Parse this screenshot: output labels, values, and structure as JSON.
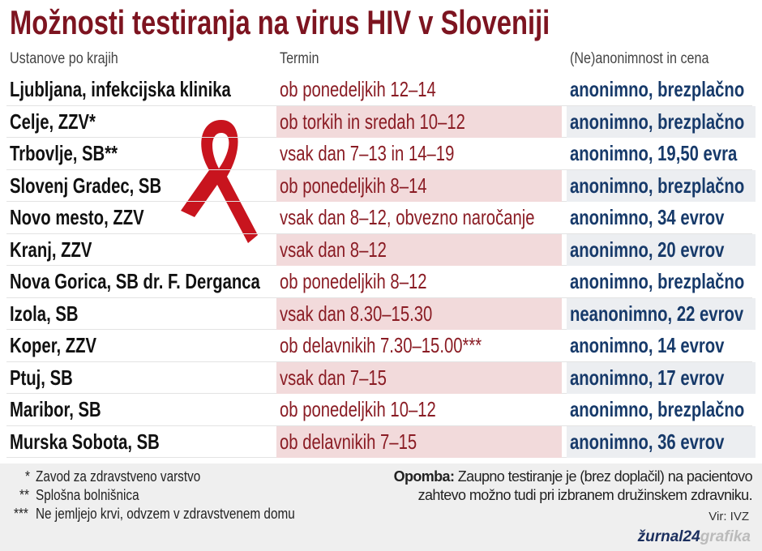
{
  "title": "Možnosti testiranja na virus HIV v Sloveniji",
  "table": {
    "header": [
      "Ustanove po krajih",
      "Termin",
      "(Ne)anonimnost in cena"
    ],
    "rows": [
      [
        "Ljubljana, infekcijska klinika",
        "ob ponedeljkih 12–14",
        "anonimno, brezplačno"
      ],
      [
        "Celje, ZZV*",
        "ob torkih in sredah 10–12",
        "anonimno, brezplačno"
      ],
      [
        "Trbovlje, SB**",
        "vsak dan 7–13 in 14–19",
        "anonimno, 19,50 evra"
      ],
      [
        "Slovenj Gradec, SB",
        "ob ponedeljkih 8–14",
        "anonimno, brezplačno"
      ],
      [
        "Novo mesto, ZZV",
        "vsak dan 8–12, obvezno naročanje",
        "anonimno, 34 evrov"
      ],
      [
        "Kranj, ZZV",
        "vsak dan 8–12",
        "anonimno, 20 evrov"
      ],
      [
        "Nova Gorica, SB dr. F. Derganca",
        "ob ponedeljkih 8–12",
        "anonimno, brezplačno"
      ],
      [
        "Izola, SB",
        "vsak dan 8.30–15.30",
        "neanonimno, 22 evrov"
      ],
      [
        "Koper, ZZV",
        "ob delavnikih 7.30–15.00***",
        "anonimno, 14 evrov"
      ],
      [
        "Ptuj, SB",
        "vsak dan 7–15",
        "anonimno, 17 evrov"
      ],
      [
        "Maribor, SB",
        "ob ponedeljkih 10–12",
        "anonimno, brezplačno"
      ],
      [
        "Murska Sobota, SB",
        "ob delavnikih 7–15",
        "anonimno, 36 evrov"
      ]
    ]
  },
  "footnotes": [
    {
      "marker": "*",
      "text": "Zavod za zdravstveno varstvo"
    },
    {
      "marker": "**",
      "text": "Splošna bolnišnica"
    },
    {
      "marker": "***",
      "text": "Ne jemljejo krvi, odvzem v zdravstvenem domu"
    }
  ],
  "note": {
    "label": "Opomba:",
    "lines": [
      "Zaupno testiranje je (brez doplačil) na pacientovo",
      "zahtevo možno tudi pri izbranem družinskem zdravniku."
    ]
  },
  "source": "Vir: IVZ",
  "brand": {
    "name": "žurnal24",
    "suffix": "grafika"
  }
}
